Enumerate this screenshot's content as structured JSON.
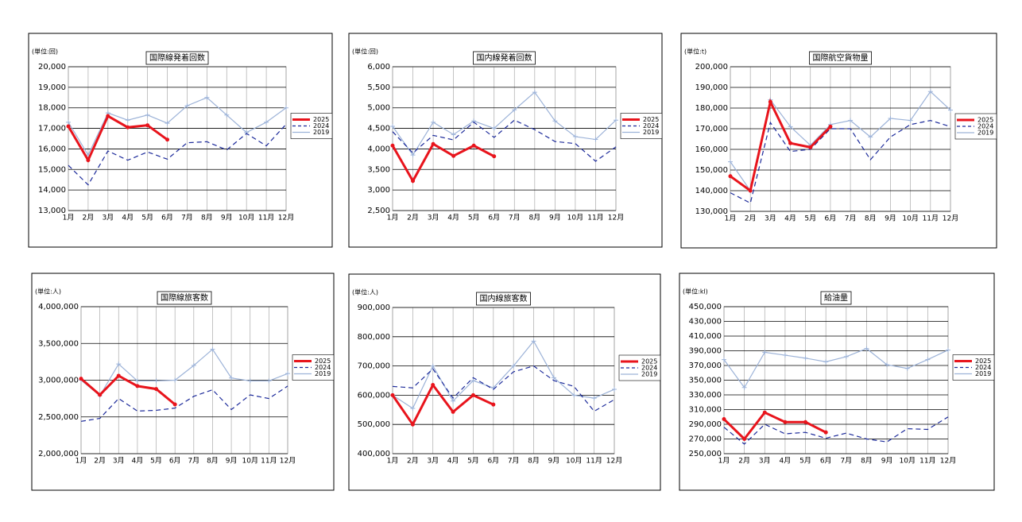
{
  "chart_data": [
    {
      "type": "line",
      "title": "国際線発着回数",
      "unit": "(単位:回)",
      "categories": [
        "1月",
        "2月",
        "3月",
        "4月",
        "5月",
        "6月",
        "7月",
        "8月",
        "9月",
        "10月",
        "11月",
        "12月"
      ],
      "series": [
        {
          "name": "2025",
          "color": "#e8141c",
          "line_style": "solid",
          "marker": "dot",
          "values": [
            17100,
            15450,
            17600,
            17050,
            17150,
            16450,
            null,
            null,
            null,
            null,
            null,
            null
          ]
        },
        {
          "name": "2024",
          "color": "#1c2a9a",
          "line_style": "dashed",
          "marker": "none",
          "values": [
            15200,
            14250,
            15900,
            15450,
            15850,
            15500,
            16300,
            16350,
            15950,
            16750,
            16150,
            17200
          ]
        },
        {
          "name": "2019",
          "color": "#9db3d8",
          "line_style": "solid",
          "marker": "plus",
          "values": [
            17300,
            15700,
            17750,
            17400,
            17650,
            17250,
            18100,
            18500,
            17650,
            16800,
            17300,
            18000
          ]
        }
      ],
      "ylim": [
        13000,
        20000
      ],
      "yticks": [
        {
          "value": 13000,
          "label": "13,000"
        },
        {
          "value": 14000,
          "label": "14,000"
        },
        {
          "value": 15000,
          "label": "15,000"
        },
        {
          "value": 16000,
          "label": "16,000"
        },
        {
          "value": 17000,
          "label": "17,000"
        },
        {
          "value": 18000,
          "label": "18,000"
        },
        {
          "value": 19000,
          "label": "19,000"
        },
        {
          "value": 20000,
          "label": "20,000"
        }
      ],
      "grid": true,
      "legend": "right"
    },
    {
      "type": "line",
      "title": "国内線発着回数",
      "unit": "(単位:回)",
      "categories": [
        "1月",
        "2月",
        "3月",
        "4月",
        "5月",
        "6月",
        "7月",
        "8月",
        "9月",
        "10月",
        "11月",
        "12月"
      ],
      "series": [
        {
          "name": "2025",
          "color": "#e8141c",
          "line_style": "solid",
          "marker": "dot",
          "values": [
            4080,
            3220,
            4120,
            3830,
            4080,
            3820,
            null,
            null,
            null,
            null,
            null,
            null
          ]
        },
        {
          "name": "2024",
          "color": "#1c2a9a",
          "line_style": "dashed",
          "marker": "none",
          "values": [
            4420,
            3900,
            4330,
            4220,
            4650,
            4280,
            4700,
            4470,
            4180,
            4130,
            3700,
            4050
          ]
        },
        {
          "name": "2019",
          "color": "#9db3d8",
          "line_style": "solid",
          "marker": "plus",
          "values": [
            4550,
            3850,
            4650,
            4350,
            4680,
            4500,
            4950,
            5380,
            4680,
            4300,
            4230,
            4700
          ]
        }
      ],
      "ylim": [
        2500,
        6000
      ],
      "yticks": [
        {
          "value": 2500,
          "label": "2,500"
        },
        {
          "value": 3000,
          "label": "3,000"
        },
        {
          "value": 3500,
          "label": "3,500"
        },
        {
          "value": 4000,
          "label": "4,000"
        },
        {
          "value": 4500,
          "label": "4,500"
        },
        {
          "value": 5000,
          "label": "5,000"
        },
        {
          "value": 5500,
          "label": "5,500"
        },
        {
          "value": 6000,
          "label": "6,000"
        }
      ],
      "grid": true,
      "legend": "right"
    },
    {
      "type": "line",
      "title": "国際航空貨物量",
      "unit": "(単位:t)",
      "categories": [
        "1月",
        "2月",
        "3月",
        "4月",
        "5月",
        "6月",
        "7月",
        "8月",
        "9月",
        "10月",
        "11月",
        "12月"
      ],
      "series": [
        {
          "name": "2025",
          "color": "#e8141c",
          "line_style": "solid",
          "marker": "dot",
          "values": [
            147000,
            140000,
            183000,
            163000,
            161000,
            171000,
            null,
            null,
            null,
            null,
            null,
            null
          ]
        },
        {
          "name": "2024",
          "color": "#1c2a9a",
          "line_style": "dashed",
          "marker": "none",
          "values": [
            139000,
            134000,
            173000,
            159000,
            160000,
            170000,
            170000,
            155000,
            166000,
            172000,
            174000,
            171000
          ]
        },
        {
          "name": "2019",
          "color": "#9db3d8",
          "line_style": "solid",
          "marker": "plus",
          "values": [
            154000,
            140000,
            184000,
            171000,
            162000,
            172000,
            174000,
            166000,
            175000,
            174000,
            188000,
            179000
          ]
        }
      ],
      "ylim": [
        130000,
        200000
      ],
      "yticks": [
        {
          "value": 130000,
          "label": "130,000"
        },
        {
          "value": 140000,
          "label": "140,000"
        },
        {
          "value": 150000,
          "label": "150,000"
        },
        {
          "value": 160000,
          "label": "160,000"
        },
        {
          "value": 170000,
          "label": "170,000"
        },
        {
          "value": 180000,
          "label": "180,000"
        },
        {
          "value": 190000,
          "label": "190,000"
        },
        {
          "value": 200000,
          "label": "200,000"
        }
      ],
      "grid": true,
      "legend": "right"
    },
    {
      "type": "line",
      "title": "国際線旅客数",
      "unit": "(単位:人)",
      "categories": [
        "1月",
        "2月",
        "3月",
        "4月",
        "5月",
        "6月",
        "7月",
        "8月",
        "9月",
        "10月",
        "11月",
        "12月"
      ],
      "series": [
        {
          "name": "2025",
          "color": "#e8141c",
          "line_style": "solid",
          "marker": "dot",
          "values": [
            3020000,
            2800000,
            3060000,
            2920000,
            2880000,
            2670000,
            null,
            null,
            null,
            null,
            null,
            null
          ]
        },
        {
          "name": "2024",
          "color": "#1c2a9a",
          "line_style": "dashed",
          "marker": "none",
          "values": [
            2440000,
            2480000,
            2750000,
            2580000,
            2590000,
            2620000,
            2780000,
            2870000,
            2600000,
            2800000,
            2750000,
            2920000
          ]
        },
        {
          "name": "2019",
          "color": "#9db3d8",
          "line_style": "solid",
          "marker": "plus",
          "values": [
            3000000,
            2790000,
            3220000,
            2990000,
            2990000,
            3000000,
            3200000,
            3420000,
            3030000,
            2990000,
            2990000,
            3090000
          ]
        }
      ],
      "ylim": [
        2000000,
        4000000
      ],
      "yticks": [
        {
          "value": 2000000,
          "label": "2,000,000"
        },
        {
          "value": 2500000,
          "label": "2,500,000"
        },
        {
          "value": 3000000,
          "label": "3,000,000"
        },
        {
          "value": 3500000,
          "label": "3,500,000"
        },
        {
          "value": 4000000,
          "label": "4,000,000"
        }
      ],
      "grid": true,
      "legend": "right"
    },
    {
      "type": "line",
      "title": "国内線旅客数",
      "unit": "(単位:人)",
      "categories": [
        "1月",
        "2月",
        "3月",
        "4月",
        "5月",
        "6月",
        "7月",
        "8月",
        "9月",
        "10月",
        "11月",
        "12月"
      ],
      "series": [
        {
          "name": "2025",
          "color": "#e8141c",
          "line_style": "solid",
          "marker": "dot",
          "values": [
            600000,
            500000,
            635000,
            543000,
            600000,
            568000,
            null,
            null,
            null,
            null,
            null,
            null
          ]
        },
        {
          "name": "2024",
          "color": "#1c2a9a",
          "line_style": "dashed",
          "marker": "none",
          "values": [
            630000,
            625000,
            690000,
            590000,
            660000,
            620000,
            680000,
            700000,
            650000,
            630000,
            545000,
            585000
          ]
        },
        {
          "name": "2019",
          "color": "#9db3d8",
          "line_style": "solid",
          "marker": "plus",
          "values": [
            600000,
            555000,
            700000,
            580000,
            650000,
            625000,
            700000,
            785000,
            660000,
            600000,
            590000,
            620000
          ]
        }
      ],
      "ylim": [
        400000,
        900000
      ],
      "yticks": [
        {
          "value": 400000,
          "label": "400,000"
        },
        {
          "value": 500000,
          "label": "500,000"
        },
        {
          "value": 600000,
          "label": "600,000"
        },
        {
          "value": 700000,
          "label": "700,000"
        },
        {
          "value": 800000,
          "label": "800,000"
        },
        {
          "value": 900000,
          "label": "900,000"
        }
      ],
      "grid": true,
      "legend": "right"
    },
    {
      "type": "line",
      "title": "給油量",
      "unit": "(単位:kl)",
      "categories": [
        "1月",
        "2月",
        "3月",
        "4月",
        "5月",
        "6月",
        "7月",
        "8月",
        "9月",
        "10月",
        "11月",
        "12月"
      ],
      "series": [
        {
          "name": "2025",
          "color": "#e8141c",
          "line_style": "solid",
          "marker": "dot",
          "values": [
            297000,
            270000,
            306000,
            293000,
            293000,
            279000,
            null,
            null,
            null,
            null,
            null,
            null
          ]
        },
        {
          "name": "2024",
          "color": "#1c2a9a",
          "line_style": "dashed",
          "marker": "none",
          "values": [
            286000,
            263000,
            290000,
            277000,
            279000,
            271000,
            278000,
            270000,
            266000,
            284000,
            283000,
            300000
          ]
        },
        {
          "name": "2019",
          "color": "#9db3d8",
          "line_style": "solid",
          "marker": "plus",
          "values": [
            378000,
            340000,
            388000,
            384000,
            380000,
            375000,
            382000,
            393000,
            371000,
            366000,
            378000,
            391000
          ]
        }
      ],
      "ylim": [
        250000,
        450000
      ],
      "yticks": [
        {
          "value": 250000,
          "label": "250,000"
        },
        {
          "value": 270000,
          "label": "270,000"
        },
        {
          "value": 290000,
          "label": "290,000"
        },
        {
          "value": 310000,
          "label": "310,000"
        },
        {
          "value": 330000,
          "label": "330,000"
        },
        {
          "value": 350000,
          "label": "350,000"
        },
        {
          "value": 370000,
          "label": "370,000"
        },
        {
          "value": 390000,
          "label": "390,000"
        },
        {
          "value": 410000,
          "label": "410,000"
        },
        {
          "value": 430000,
          "label": "430,000"
        },
        {
          "value": 450000,
          "label": "450,000"
        }
      ],
      "grid": true,
      "legend": "right"
    }
  ]
}
